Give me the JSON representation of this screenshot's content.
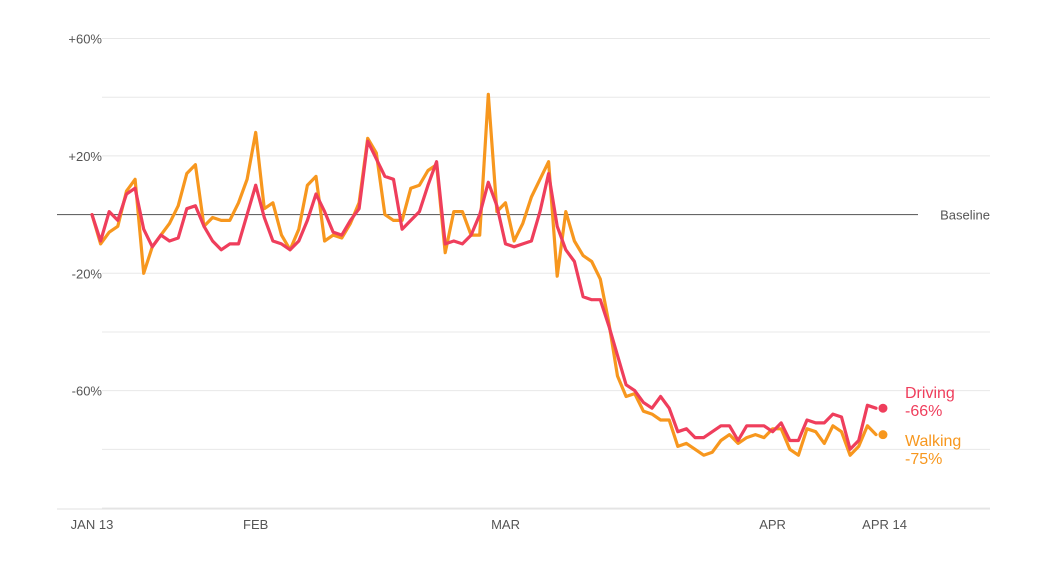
{
  "chart_data": {
    "type": "line",
    "title": "",
    "xlabel": "",
    "ylabel": "",
    "ylim": [
      -100,
      60
    ],
    "baseline_label": "Baseline",
    "y_ticks": [
      {
        "value": 60,
        "label": "+60%"
      },
      {
        "value": 20,
        "label": "+20%"
      },
      {
        "value": -20,
        "label": "-20%"
      },
      {
        "value": -60,
        "label": "-60%"
      }
    ],
    "y_gridlines": [
      60,
      40,
      20,
      -20,
      -40,
      -60,
      -80,
      -100
    ],
    "x_ticks": [
      {
        "index": 0,
        "label": "JAN 13"
      },
      {
        "index": 19,
        "label": "FEB"
      },
      {
        "index": 48,
        "label": "MAR"
      },
      {
        "index": 79,
        "label": "APR"
      },
      {
        "index": 92,
        "label": "APR 14"
      }
    ],
    "series": [
      {
        "name": "Driving",
        "end_label": "Driving",
        "end_value_label": "-66%",
        "color": "#ef3e5c",
        "values": [
          0,
          -9,
          1,
          -2,
          7,
          9,
          -5,
          -11,
          -7,
          -9,
          -8,
          2,
          3,
          -4,
          -9,
          -12,
          -10,
          -10,
          0,
          10,
          -1,
          -9,
          -10,
          -12,
          -9,
          -2,
          7,
          1,
          -6,
          -7,
          -2,
          2,
          25,
          19,
          13,
          12,
          -5,
          -2,
          1,
          10,
          18,
          -10,
          -9,
          -10,
          -7,
          0,
          11,
          3,
          -10,
          -11,
          -10,
          -9,
          1,
          14,
          -4,
          -12,
          -16,
          -28,
          -29,
          -29,
          -38,
          -48,
          -58,
          -60,
          -64,
          -66,
          -62,
          -66,
          -74,
          -73,
          -76,
          -76,
          -74,
          -72,
          -72,
          -77,
          -72,
          -72,
          -72,
          -74,
          -71,
          -77,
          -77,
          -70,
          -71,
          -71,
          -68,
          -69,
          -80,
          -77,
          -65,
          -66
        ],
        "end_marker_value": -66
      },
      {
        "name": "Walking",
        "end_label": "Walking",
        "end_value_label": "-75%",
        "color": "#f7971e",
        "values": [
          0,
          -10,
          -6,
          -4,
          8,
          12,
          -20,
          -11,
          -7,
          -3,
          3,
          14,
          17,
          -4,
          -1,
          -2,
          -2,
          4,
          12,
          28,
          2,
          4,
          -7,
          -12,
          -5,
          10,
          13,
          -9,
          -7,
          -8,
          -3,
          4,
          26,
          21,
          0,
          -2,
          -2,
          9,
          10,
          15,
          17,
          -13,
          1,
          1,
          -7,
          -7,
          41,
          1,
          4,
          -9,
          -3,
          6,
          12,
          18,
          -21,
          1,
          -9,
          -14,
          -16,
          -22,
          -37,
          -55,
          -62,
          -61,
          -67,
          -68,
          -70,
          -70,
          -79,
          -78,
          -80,
          -82,
          -81,
          -77,
          -75,
          -78,
          -76,
          -75,
          -76,
          -73,
          -73,
          -80,
          -82,
          -73,
          -74,
          -78,
          -72,
          -74,
          -82,
          -79,
          -72,
          -75
        ],
        "end_marker_value": -75
      }
    ]
  }
}
